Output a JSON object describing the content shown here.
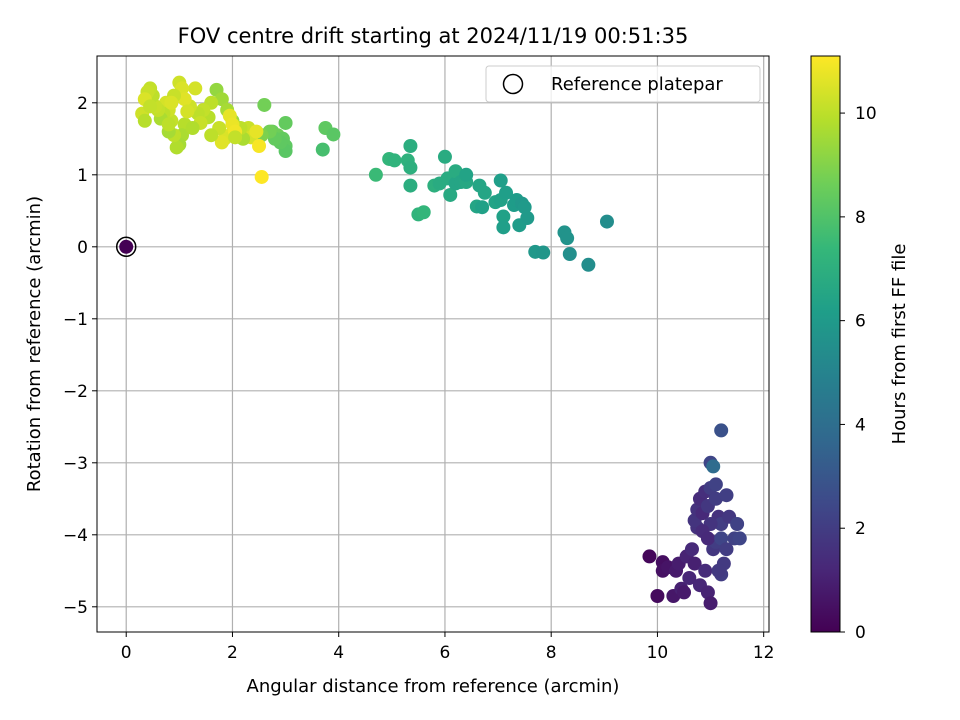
{
  "chart_data": {
    "type": "scatter",
    "title": "FOV centre drift starting at 2024/11/19 00:51:35",
    "xlabel": "Angular distance from reference (arcmin)",
    "ylabel": "Rotation from reference (arcmin)",
    "xlim": [
      -0.55,
      12.1
    ],
    "ylim": [
      -5.35,
      2.65
    ],
    "xticks": [
      0,
      2,
      4,
      6,
      8,
      10,
      12
    ],
    "yticks": [
      2,
      1,
      0,
      -1,
      -2,
      -3,
      -4,
      -5
    ],
    "xtick_labels": [
      "0",
      "2",
      "4",
      "6",
      "8",
      "10",
      "12"
    ],
    "ytick_labels": [
      "2",
      "1",
      "0",
      "−1",
      "−2",
      "−3",
      "−4",
      "−5"
    ],
    "grid": true,
    "legend_position": "top-right",
    "legend_label": "Reference platepar",
    "reference_point": [
      0,
      0
    ],
    "colorbar": {
      "label": "Hours from first FF file",
      "range": [
        0,
        11.1
      ],
      "ticks": [
        0,
        2,
        4,
        6,
        8,
        10
      ],
      "tick_labels": [
        "0",
        "2",
        "4",
        "6",
        "8",
        "10"
      ],
      "colormap": "viridis",
      "colormap_stops": [
        "#440154",
        "#482878",
        "#3e4989",
        "#31688e",
        "#26828e",
        "#1f9e89",
        "#35b779",
        "#6ece58",
        "#b5de2b",
        "#fde725"
      ]
    },
    "points": [
      [
        0,
        0,
        0.0
      ],
      [
        9.85,
        -4.3,
        0.2
      ],
      [
        10.0,
        -4.85,
        0.3
      ],
      [
        10.1,
        -4.38,
        0.4
      ],
      [
        10.1,
        -4.5,
        0.5
      ],
      [
        10.2,
        -4.45,
        0.6
      ],
      [
        10.3,
        -4.85,
        0.7
      ],
      [
        10.35,
        -4.5,
        0.8
      ],
      [
        10.4,
        -4.4,
        0.9
      ],
      [
        10.45,
        -4.75,
        1.0
      ],
      [
        10.5,
        -4.8,
        0.8
      ],
      [
        10.55,
        -4.3,
        1.1
      ],
      [
        10.6,
        -4.6,
        1.2
      ],
      [
        10.65,
        -4.2,
        1.3
      ],
      [
        10.7,
        -4.4,
        1.0
      ],
      [
        10.75,
        -3.9,
        1.6
      ],
      [
        10.8,
        -4.7,
        1.2
      ],
      [
        10.9,
        -4.5,
        1.4
      ],
      [
        10.95,
        -4.8,
        1.1
      ],
      [
        11.0,
        -4.95,
        0.9
      ],
      [
        11.05,
        -4.2,
        1.8
      ],
      [
        11.1,
        -4.1,
        2.0
      ],
      [
        11.2,
        -4.55,
        2.0
      ],
      [
        11.25,
        -4.4,
        1.9
      ],
      [
        10.7,
        -3.8,
        1.7
      ],
      [
        10.75,
        -3.65,
        1.6
      ],
      [
        10.8,
        -3.5,
        1.4
      ],
      [
        10.85,
        -3.7,
        1.3
      ],
      [
        10.9,
        -3.4,
        1.5
      ],
      [
        10.95,
        -3.6,
        1.8
      ],
      [
        11.0,
        -3.0,
        2.3
      ],
      [
        11.05,
        -3.05,
        3.9
      ],
      [
        11.0,
        -3.35,
        2.0
      ],
      [
        11.1,
        -3.3,
        2.2
      ],
      [
        11.1,
        -3.5,
        2.0
      ],
      [
        11.15,
        -3.75,
        1.6
      ],
      [
        11.2,
        -3.85,
        2.0
      ],
      [
        11.0,
        -3.85,
        1.7
      ],
      [
        10.85,
        -3.95,
        1.4
      ],
      [
        10.95,
        -4.05,
        1.3
      ],
      [
        11.2,
        -4.05,
        2.3
      ],
      [
        11.3,
        -3.45,
        2.1
      ],
      [
        11.35,
        -3.75,
        1.8
      ],
      [
        11.45,
        -4.05,
        2.2
      ],
      [
        11.55,
        -4.05,
        2.3
      ],
      [
        11.5,
        -3.85,
        2.2
      ],
      [
        11.2,
        -2.55,
        2.8
      ],
      [
        11.15,
        -4.5,
        1.9
      ],
      [
        11.3,
        -4.2,
        2.0
      ],
      [
        4.7,
        1.0,
        7.5
      ],
      [
        4.95,
        1.22,
        7.3
      ],
      [
        5.05,
        1.2,
        7.2
      ],
      [
        5.3,
        1.2,
        7.1
      ],
      [
        5.35,
        1.1,
        7.0
      ],
      [
        5.35,
        1.4,
        6.9
      ],
      [
        5.35,
        0.85,
        6.9
      ],
      [
        5.5,
        0.45,
        7.2
      ],
      [
        5.6,
        0.48,
        7.3
      ],
      [
        5.8,
        0.85,
        7.0
      ],
      [
        5.9,
        0.88,
        6.8
      ],
      [
        6.0,
        1.25,
        6.8
      ],
      [
        6.05,
        0.95,
        6.8
      ],
      [
        6.1,
        0.72,
        6.7
      ],
      [
        6.2,
        0.88,
        6.5
      ],
      [
        6.2,
        1.05,
        6.8
      ],
      [
        6.3,
        0.9,
        6.5
      ],
      [
        6.4,
        0.9,
        6.6
      ],
      [
        6.4,
        1.0,
        6.4
      ],
      [
        6.6,
        0.56,
        6.5
      ],
      [
        6.65,
        0.85,
        6.5
      ],
      [
        6.7,
        0.55,
        6.3
      ],
      [
        6.75,
        0.75,
        6.5
      ],
      [
        6.95,
        0.62,
        6.4
      ],
      [
        7.05,
        0.92,
        6.2
      ],
      [
        7.05,
        0.65,
        6.3
      ],
      [
        7.1,
        0.42,
        6.3
      ],
      [
        7.15,
        0.75,
        6.2
      ],
      [
        7.1,
        0.27,
        6.2
      ],
      [
        7.3,
        0.58,
        6.1
      ],
      [
        7.35,
        0.65,
        6.1
      ],
      [
        7.4,
        0.3,
        6.1
      ],
      [
        7.45,
        0.6,
        5.9
      ],
      [
        7.5,
        0.55,
        6.0
      ],
      [
        7.55,
        0.4,
        6.0
      ],
      [
        7.7,
        -0.07,
        5.9
      ],
      [
        7.85,
        -0.08,
        5.8
      ],
      [
        8.25,
        0.2,
        5.7
      ],
      [
        8.3,
        0.12,
        5.7
      ],
      [
        8.35,
        -0.1,
        5.5
      ],
      [
        8.7,
        -0.25,
        5.4
      ],
      [
        9.05,
        0.35,
        5.4
      ],
      [
        3.7,
        1.35,
        7.8
      ],
      [
        3.75,
        1.65,
        8.3
      ],
      [
        3.9,
        1.56,
        8.2
      ],
      [
        2.6,
        1.97,
        8.7
      ],
      [
        3.0,
        1.72,
        8.4
      ],
      [
        2.75,
        1.6,
        8.5
      ],
      [
        2.85,
        1.55,
        8.6
      ],
      [
        2.95,
        1.5,
        8.4
      ],
      [
        3.0,
        1.4,
        8.3
      ],
      [
        3.0,
        1.33,
        8.2
      ],
      [
        2.9,
        1.45,
        8.3
      ],
      [
        2.8,
        1.5,
        8.4
      ],
      [
        2.7,
        1.6,
        8.7
      ],
      [
        2.55,
        1.55,
        8.9
      ],
      [
        2.4,
        1.55,
        9.1
      ],
      [
        2.3,
        1.65,
        10.2
      ],
      [
        2.35,
        1.52,
        10.4
      ],
      [
        2.45,
        1.6,
        10.7
      ],
      [
        2.5,
        1.4,
        11.0
      ],
      [
        2.55,
        0.97,
        11.1
      ],
      [
        2.2,
        1.5,
        9.7
      ],
      [
        2.15,
        1.65,
        10.0
      ],
      [
        2.0,
        1.75,
        9.4
      ],
      [
        1.95,
        1.55,
        10.6
      ],
      [
        1.85,
        1.5,
        10.5
      ],
      [
        1.8,
        1.45,
        10.6
      ],
      [
        1.75,
        1.65,
        10.2
      ],
      [
        1.7,
        2.18,
        9.3
      ],
      [
        1.8,
        2.05,
        9.5
      ],
      [
        1.9,
        1.9,
        9.6
      ],
      [
        1.95,
        1.82,
        10.7
      ],
      [
        2.0,
        1.7,
        10.8
      ],
      [
        2.05,
        1.6,
        10.9
      ],
      [
        1.6,
        2.0,
        10.0
      ],
      [
        1.55,
        1.8,
        9.9
      ],
      [
        1.45,
        1.9,
        10.1
      ],
      [
        1.35,
        1.85,
        10.0
      ],
      [
        1.4,
        1.72,
        10.2
      ],
      [
        1.3,
        2.2,
        10.4
      ],
      [
        1.2,
        1.95,
        10.3
      ],
      [
        1.1,
        1.7,
        9.9
      ],
      [
        1.05,
        1.55,
        9.7
      ],
      [
        1.0,
        1.42,
        9.6
      ],
      [
        0.95,
        1.38,
        9.8
      ],
      [
        0.9,
        1.55,
        10.0
      ],
      [
        0.85,
        1.75,
        10.1
      ],
      [
        0.8,
        1.9,
        10.3
      ],
      [
        0.75,
        2.0,
        10.4
      ],
      [
        0.7,
        1.85,
        10.0
      ],
      [
        0.65,
        1.78,
        9.7
      ],
      [
        0.6,
        1.9,
        10.1
      ],
      [
        0.55,
        1.95,
        10.2
      ],
      [
        0.5,
        2.1,
        10.0
      ],
      [
        0.45,
        2.2,
        10.1
      ],
      [
        0.4,
        2.15,
        10.2
      ],
      [
        0.35,
        2.05,
        10.5
      ],
      [
        0.3,
        1.85,
        10.3
      ],
      [
        0.35,
        1.75,
        9.9
      ],
      [
        0.45,
        1.95,
        10.1
      ],
      [
        1.0,
        2.28,
        10.3
      ],
      [
        1.05,
        2.2,
        10.5
      ],
      [
        1.1,
        2.05,
        10.6
      ],
      [
        1.15,
        1.88,
        10.4
      ],
      [
        0.9,
        2.1,
        10.2
      ],
      [
        0.85,
        2.0,
        10.5
      ],
      [
        0.8,
        1.6,
        9.6
      ],
      [
        0.8,
        1.7,
        10.0
      ],
      [
        1.25,
        1.65,
        9.8
      ],
      [
        1.6,
        1.55,
        10.0
      ],
      [
        2.05,
        1.52,
        10.1
      ]
    ]
  }
}
